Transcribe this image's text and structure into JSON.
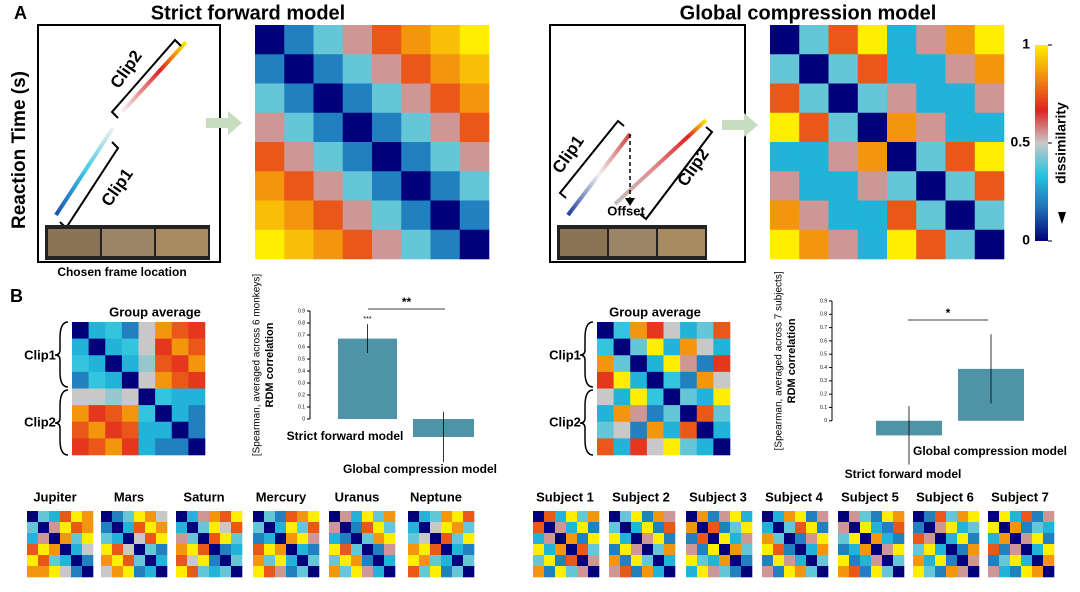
{
  "panel_a": {
    "label": "A",
    "forward_title": "Strict forward model",
    "compression_title": "Global compression  model",
    "y_axis_label": "Reaction Time (s)",
    "forward_schematic": {
      "clip2": "Clip2",
      "clip1": "Clip1",
      "caption": "Chosen frame location"
    },
    "compression_schematic": {
      "clip1": "Clip1",
      "clip2": "Clip2",
      "offset": "Offset"
    },
    "colorbar": {
      "label": "dissimilarity",
      "lim": [
        0,
        1
      ],
      "ticks": [
        1,
        0.5,
        0
      ],
      "colormap": [
        "#00007a",
        "#1f6fb8",
        "#22c4e0",
        "#c8c8c8",
        "#e02222",
        "#f28c10",
        "#ffee00"
      ]
    },
    "forward_matrix": [
      [
        0,
        0.2,
        0.4,
        0.55,
        0.75,
        0.85,
        0.92,
        1
      ],
      [
        0.2,
        0,
        0.2,
        0.4,
        0.55,
        0.75,
        0.85,
        0.92
      ],
      [
        0.4,
        0.2,
        0,
        0.2,
        0.4,
        0.55,
        0.75,
        0.85
      ],
      [
        0.55,
        0.4,
        0.2,
        0,
        0.2,
        0.4,
        0.55,
        0.75
      ],
      [
        0.75,
        0.55,
        0.4,
        0.2,
        0,
        0.2,
        0.4,
        0.55
      ],
      [
        0.85,
        0.75,
        0.55,
        0.4,
        0.2,
        0,
        0.2,
        0.4
      ],
      [
        0.92,
        0.85,
        0.75,
        0.55,
        0.4,
        0.2,
        0,
        0.2
      ],
      [
        1,
        0.92,
        0.85,
        0.75,
        0.55,
        0.4,
        0.2,
        0
      ]
    ],
    "compression_matrix": [
      [
        0,
        0.4,
        0.75,
        1,
        0.3,
        0.55,
        0.85,
        1
      ],
      [
        0.4,
        0,
        0.4,
        0.75,
        0.3,
        0.3,
        0.55,
        0.85
      ],
      [
        0.75,
        0.4,
        0,
        0.4,
        0.55,
        0.3,
        0.3,
        0.55
      ],
      [
        1,
        0.75,
        0.4,
        0,
        0.85,
        0.55,
        0.3,
        0.3
      ],
      [
        0.3,
        0.3,
        0.55,
        0.85,
        0,
        0.4,
        0.75,
        1
      ],
      [
        0.55,
        0.3,
        0.3,
        0.55,
        0.4,
        0,
        0.4,
        0.75
      ],
      [
        0.85,
        0.55,
        0.3,
        0.3,
        0.75,
        0.4,
        0,
        0.4
      ],
      [
        1,
        0.85,
        0.55,
        0.3,
        1,
        0.75,
        0.4,
        0
      ]
    ]
  },
  "panel_b": {
    "label": "B",
    "monkeys": {
      "title": "Group average",
      "clip1": "Clip1",
      "clip2": "Clip2",
      "matrix": [
        [
          0,
          0.3,
          0.35,
          0.2,
          0.5,
          0.85,
          0.75,
          0.7
        ],
        [
          0.3,
          0,
          0.3,
          0.35,
          0.5,
          0.7,
          0.85,
          0.75
        ],
        [
          0.35,
          0.3,
          0,
          0.3,
          0.45,
          0.75,
          0.7,
          0.85
        ],
        [
          0.2,
          0.35,
          0.3,
          0,
          0.5,
          0.85,
          0.75,
          0.7
        ],
        [
          0.5,
          0.5,
          0.45,
          0.5,
          0,
          0.35,
          0.3,
          0.3
        ],
        [
          0.85,
          0.7,
          0.75,
          0.85,
          0.35,
          0,
          0.3,
          0.2
        ],
        [
          0.75,
          0.85,
          0.7,
          0.75,
          0.3,
          0.3,
          0,
          0.2
        ],
        [
          0.7,
          0.75,
          0.85,
          0.7,
          0.3,
          0.2,
          0.2,
          0
        ]
      ],
      "individuals": [
        {
          "name": "Jupiter",
          "matrix": [
            [
              0,
              0.4,
              0.3,
              0.75,
              1,
              0.85
            ],
            [
              0.4,
              0,
              0.55,
              1,
              0.75,
              0.85
            ],
            [
              0.3,
              0.55,
              0,
              0.85,
              0.4,
              1
            ],
            [
              0.75,
              1,
              0.85,
              0,
              0.3,
              0.5
            ],
            [
              1,
              0.75,
              0.4,
              0.3,
              0,
              0.2
            ],
            [
              0.85,
              0.85,
              1,
              0.5,
              0.2,
              0
            ]
          ]
        },
        {
          "name": "Mars",
          "matrix": [
            [
              0,
              0.2,
              0.4,
              1,
              0.85,
              0.5
            ],
            [
              0.2,
              0,
              0.3,
              0.75,
              1,
              0.85
            ],
            [
              0.4,
              0.3,
              0,
              0.5,
              0.75,
              1
            ],
            [
              1,
              0.75,
              0.5,
              0,
              0.4,
              0.2
            ],
            [
              0.85,
              1,
              0.75,
              0.4,
              0,
              0.3
            ],
            [
              0.5,
              0.85,
              1,
              0.2,
              0.3,
              0
            ]
          ]
        },
        {
          "name": "Saturn",
          "matrix": [
            [
              0,
              0.3,
              0.55,
              0.85,
              0.75,
              1
            ],
            [
              0.3,
              0,
              0.4,
              1,
              0.5,
              0.75
            ],
            [
              0.55,
              0.4,
              0,
              0.75,
              1,
              0.4
            ],
            [
              0.85,
              1,
              0.75,
              0,
              0.2,
              0.3
            ],
            [
              0.75,
              0.5,
              1,
              0.2,
              0,
              0.4
            ],
            [
              1,
              0.75,
              0.4,
              0.3,
              0.4,
              0
            ]
          ]
        },
        {
          "name": "Mercury",
          "matrix": [
            [
              0,
              0.4,
              0.2,
              0.75,
              0.85,
              1
            ],
            [
              0.4,
              0,
              0.3,
              1,
              0.4,
              0.75
            ],
            [
              0.2,
              0.3,
              0,
              0.85,
              1,
              0.55
            ],
            [
              0.75,
              1,
              0.85,
              0,
              0.3,
              0.2
            ],
            [
              0.85,
              0.4,
              1,
              0.3,
              0,
              0.4
            ],
            [
              1,
              0.75,
              0.55,
              0.2,
              0.4,
              0
            ]
          ]
        },
        {
          "name": "Uranus",
          "matrix": [
            [
              0,
              0.55,
              0.3,
              1,
              0.4,
              0.85
            ],
            [
              0.55,
              0,
              0.2,
              0.75,
              1,
              0.4
            ],
            [
              0.3,
              0.2,
              0,
              0.4,
              0.85,
              1
            ],
            [
              1,
              0.75,
              0.4,
              0,
              0.2,
              0.55
            ],
            [
              0.4,
              1,
              0.85,
              0.2,
              0,
              0.3
            ],
            [
              0.85,
              0.4,
              1,
              0.55,
              0.3,
              0
            ]
          ]
        },
        {
          "name": "Neptune",
          "matrix": [
            [
              0,
              0.3,
              0.4,
              0.85,
              1,
              0.75
            ],
            [
              0.3,
              0,
              0.5,
              1,
              0.85,
              0.4
            ],
            [
              0.4,
              0.5,
              0,
              0.75,
              0.4,
              1
            ],
            [
              0.85,
              1,
              0.75,
              0,
              0.3,
              0.2
            ],
            [
              1,
              0.85,
              0.4,
              0.3,
              0,
              0.4
            ],
            [
              0.75,
              0.4,
              1,
              0.2,
              0.4,
              0
            ]
          ]
        }
      ]
    },
    "humans": {
      "title": "Group average",
      "clip1": "Clip1",
      "clip2": "Clip2",
      "matrix": [
        [
          0,
          0.35,
          0.85,
          0.7,
          0.5,
          0.3,
          0.4,
          0.75
        ],
        [
          0.35,
          0,
          0.4,
          1,
          0.3,
          0.85,
          0.5,
          0.3
        ],
        [
          0.85,
          0.4,
          0,
          0.3,
          1,
          0.55,
          0.2,
          0.7
        ],
        [
          0.7,
          1,
          0.3,
          0,
          0.35,
          0.2,
          0.85,
          0.5
        ],
        [
          0.5,
          0.3,
          1,
          0.35,
          0,
          0.4,
          0.3,
          1
        ],
        [
          0.3,
          0.85,
          0.55,
          0.2,
          0.4,
          0,
          0.75,
          0.4
        ],
        [
          0.4,
          0.5,
          0.2,
          0.85,
          0.3,
          0.75,
          0,
          0.3
        ],
        [
          0.75,
          0.3,
          0.7,
          0.5,
          1,
          0.4,
          0.3,
          0
        ]
      ],
      "individuals": [
        {
          "name": "Subject 1",
          "matrix": [
            [
              0,
              0.75,
              0.3,
              1,
              0.4,
              0.85
            ],
            [
              0.75,
              0,
              0.55,
              0.3,
              1,
              0.2
            ],
            [
              0.3,
              0.55,
              0,
              0.85,
              0.2,
              1
            ],
            [
              1,
              0.3,
              0.85,
              0,
              0.75,
              0.4
            ],
            [
              0.4,
              1,
              0.2,
              0.75,
              0,
              0.55
            ],
            [
              0.85,
              0.2,
              1,
              0.4,
              0.55,
              0
            ]
          ]
        },
        {
          "name": "Subject 2",
          "matrix": [
            [
              0,
              0.4,
              1,
              0.2,
              0.85,
              0.55
            ],
            [
              0.4,
              0,
              0.3,
              1,
              0.2,
              0.75
            ],
            [
              1,
              0.3,
              0,
              0.55,
              1,
              0.2
            ],
            [
              0.2,
              1,
              0.55,
              0,
              0.4,
              0.85
            ],
            [
              0.85,
              0.2,
              1,
              0.4,
              0,
              0.3
            ],
            [
              0.55,
              0.75,
              0.2,
              0.85,
              0.3,
              0
            ]
          ]
        },
        {
          "name": "Subject 3",
          "matrix": [
            [
              0,
              0.85,
              0.2,
              0.55,
              1,
              0.3
            ],
            [
              0.85,
              0,
              0.75,
              0.2,
              0.4,
              1
            ],
            [
              0.2,
              0.75,
              0,
              1,
              0.3,
              0.55
            ],
            [
              0.55,
              0.2,
              1,
              0,
              0.85,
              0.4
            ],
            [
              1,
              0.4,
              0.3,
              0.85,
              0,
              0.2
            ],
            [
              0.3,
              1,
              0.55,
              0.4,
              0.2,
              0
            ]
          ]
        },
        {
          "name": "Subject 4",
          "matrix": [
            [
              0,
              0.3,
              0.85,
              1,
              0.2,
              0.55
            ],
            [
              0.3,
              0,
              0.4,
              0.75,
              1,
              0.2
            ],
            [
              0.85,
              0.4,
              0,
              0.2,
              0.55,
              1
            ],
            [
              1,
              0.75,
              0.2,
              0,
              0.3,
              0.85
            ],
            [
              0.2,
              1,
              0.55,
              0.3,
              0,
              0.4
            ],
            [
              0.55,
              0.2,
              1,
              0.85,
              0.4,
              0
            ]
          ]
        },
        {
          "name": "Subject 5",
          "matrix": [
            [
              0,
              0.55,
              0.4,
              0.2,
              1,
              0.85
            ],
            [
              0.55,
              0,
              1,
              0.3,
              0.2,
              0.75
            ],
            [
              0.4,
              1,
              0,
              0.85,
              0.3,
              0.2
            ],
            [
              0.2,
              0.3,
              0.85,
              0,
              0.55,
              1
            ],
            [
              1,
              0.2,
              0.3,
              0.55,
              0,
              0.4
            ],
            [
              0.85,
              0.75,
              0.2,
              1,
              0.4,
              0
            ]
          ]
        },
        {
          "name": "Subject 6",
          "matrix": [
            [
              0,
              0.2,
              0.75,
              0.4,
              0.85,
              1
            ],
            [
              0.2,
              0,
              0.55,
              1,
              0.3,
              0.4
            ],
            [
              0.75,
              0.55,
              0,
              0.3,
              1,
              0.2
            ],
            [
              0.4,
              1,
              0.3,
              0,
              0.2,
              0.85
            ],
            [
              0.85,
              0.3,
              1,
              0.2,
              0,
              0.55
            ],
            [
              1,
              0.4,
              0.2,
              0.85,
              0.55,
              0
            ]
          ]
        },
        {
          "name": "Subject 7",
          "matrix": [
            [
              0,
              1,
              0.3,
              0.75,
              0.2,
              0.55
            ],
            [
              1,
              0,
              0.85,
              0.2,
              0.4,
              0.3
            ],
            [
              0.3,
              0.85,
              0,
              0.55,
              1,
              0.2
            ],
            [
              0.75,
              0.2,
              0.55,
              0,
              0.3,
              1
            ],
            [
              0.2,
              0.4,
              1,
              0.3,
              0,
              0.85
            ],
            [
              0.55,
              0.3,
              0.2,
              1,
              0.85,
              0
            ]
          ]
        }
      ]
    }
  },
  "chart_data": [
    {
      "type": "bar",
      "ylabel": "RDM correlation",
      "ylabel_sub": "[Spearman, averaged across 6 monkeys]",
      "categories": [
        "Strict forward model",
        "Global compression  model"
      ],
      "values": [
        0.67,
        -0.15
      ],
      "errors": [
        0.12,
        0.21
      ],
      "color": "#4e93a6",
      "ylim": [
        -0.4,
        0.9
      ],
      "yticks": [
        0,
        0.1,
        0.2,
        0.3,
        0.4,
        0.5,
        0.6,
        0.7,
        0.8,
        0.9
      ],
      "annotation": "***",
      "significance": "**"
    },
    {
      "type": "bar",
      "ylabel": "RDM correlation",
      "ylabel_sub": "[Spearman, averaged across 7 subjects]",
      "categories": [
        "Strict forward model",
        "Global compression  model"
      ],
      "values": [
        -0.11,
        0.39
      ],
      "errors": [
        0.22,
        0.26
      ],
      "color": "#4e93a6",
      "ylim": [
        -0.4,
        0.9
      ],
      "yticks": [
        0,
        0.1,
        0.2,
        0.3,
        0.4,
        0.5,
        0.6,
        0.7,
        0.8,
        0.9
      ],
      "significance": "*"
    }
  ]
}
